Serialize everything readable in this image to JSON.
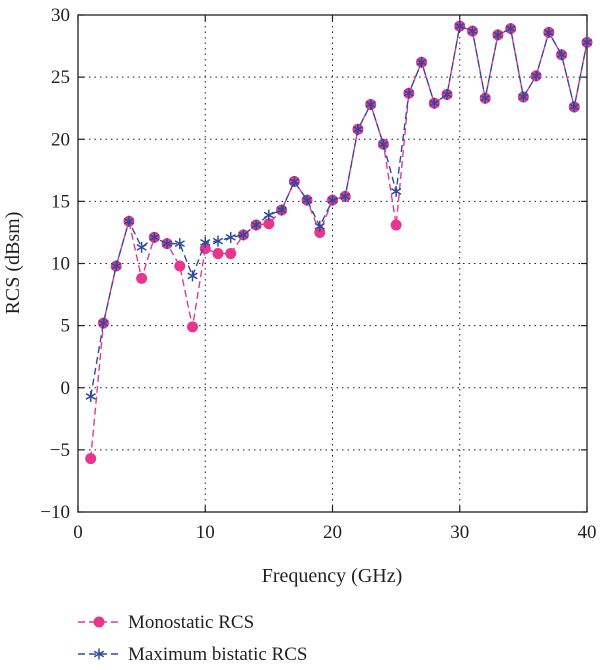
{
  "chart_data": {
    "type": "line",
    "xlabel": "Frequency (GHz)",
    "ylabel": "RCS (dBsm)",
    "xlim": [
      0,
      40
    ],
    "ylim": [
      -10,
      30
    ],
    "x_ticks": [
      0,
      10,
      20,
      30,
      40
    ],
    "y_ticks": [
      -10,
      -5,
      0,
      5,
      10,
      15,
      20,
      25,
      30
    ],
    "grid": true,
    "legend_position": "below plot",
    "series": [
      {
        "name": "Monostatic RCS",
        "color": "#e8368f",
        "marker": "filled-circle",
        "line_style": "dashed",
        "x": [
          1,
          2,
          3,
          4,
          5,
          6,
          7,
          8,
          9,
          10,
          11,
          12,
          13,
          14,
          15,
          16,
          17,
          18,
          19,
          20,
          21,
          22,
          23,
          24,
          25,
          26,
          27,
          28,
          29,
          30,
          31,
          32,
          33,
          34,
          35,
          36,
          37,
          38,
          39,
          40
        ],
        "y": [
          -5.7,
          5.2,
          9.8,
          13.4,
          8.8,
          12.1,
          11.6,
          9.8,
          4.9,
          11.2,
          10.8,
          10.8,
          12.3,
          13.1,
          13.2,
          14.3,
          16.6,
          15.1,
          12.5,
          15.1,
          15.4,
          20.8,
          22.8,
          19.6,
          13.1,
          23.7,
          26.2,
          22.9,
          23.6,
          29.1,
          28.7,
          23.3,
          28.4,
          28.9,
          23.4,
          25.1,
          28.6,
          26.8,
          22.6,
          27.8
        ]
      },
      {
        "name": "Maximum bistatic RCS",
        "color": "#2e4b9b",
        "marker": "asterisk",
        "line_style": "dashed",
        "x": [
          1,
          2,
          3,
          4,
          5,
          6,
          7,
          8,
          9,
          10,
          11,
          12,
          13,
          14,
          15,
          16,
          17,
          18,
          19,
          20,
          21,
          22,
          23,
          24,
          25,
          26,
          27,
          28,
          29,
          30,
          31,
          32,
          33,
          34,
          35,
          36,
          37,
          38,
          39,
          40
        ],
        "y": [
          -0.7,
          5.2,
          9.8,
          13.4,
          11.3,
          12.1,
          11.6,
          11.6,
          9.0,
          11.7,
          11.8,
          12.1,
          12.3,
          13.1,
          13.9,
          14.3,
          16.6,
          15.1,
          13.0,
          15.1,
          15.4,
          20.8,
          22.8,
          19.6,
          15.8,
          23.7,
          26.2,
          22.9,
          23.6,
          29.1,
          28.7,
          23.3,
          28.4,
          28.9,
          23.4,
          25.1,
          28.6,
          26.8,
          22.6,
          27.8
        ]
      }
    ]
  }
}
